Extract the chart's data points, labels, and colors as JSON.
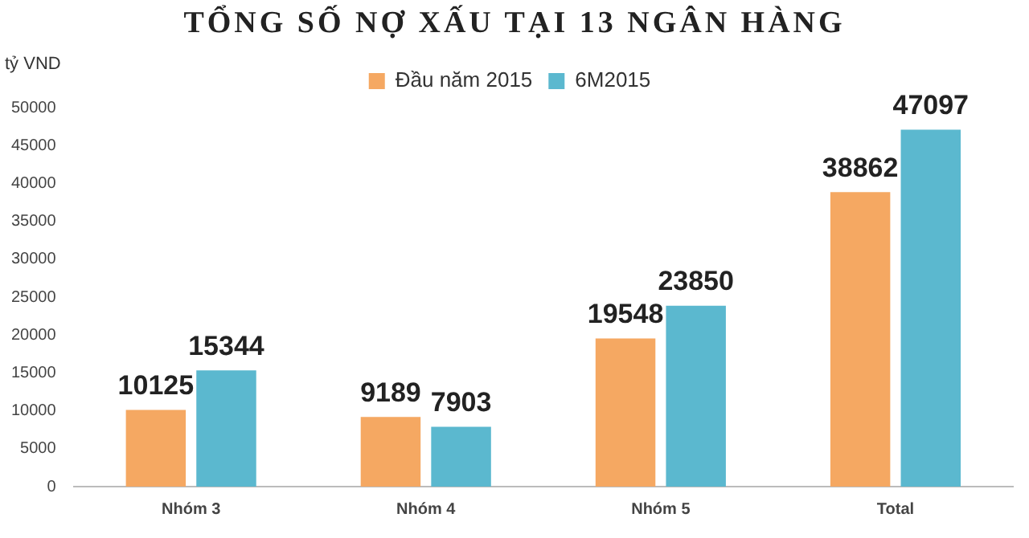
{
  "chart_data": {
    "type": "bar",
    "title": "TỔNG SỐ NỢ XẤU TẠI 13 NGÂN HÀNG",
    "ylabel": "tỷ VND",
    "categories": [
      "Nhóm 3",
      "Nhóm 4",
      "Nhóm 5",
      "Total"
    ],
    "series": [
      {
        "name": "Đầu năm 2015",
        "color": "#f5a862",
        "values": [
          10125,
          9189,
          19548,
          38862
        ]
      },
      {
        "name": "6M2015",
        "color": "#5bb8cf",
        "values": [
          15344,
          7903,
          23850,
          47097
        ]
      }
    ],
    "ylim": [
      0,
      50000
    ],
    "yticks": [
      0,
      5000,
      10000,
      15000,
      20000,
      25000,
      30000,
      35000,
      40000,
      45000,
      50000
    ],
    "grid": false,
    "legend": "top",
    "data_labels": true
  }
}
